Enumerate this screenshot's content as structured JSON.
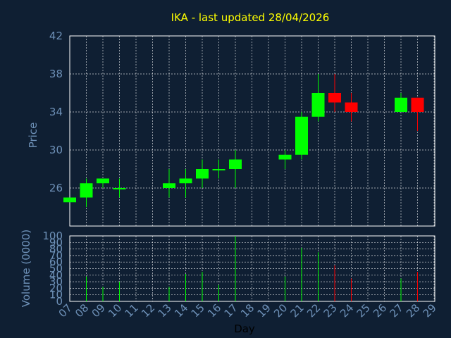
{
  "chart_data": {
    "title": "IKA - last updated 28/04/2026",
    "colors": {
      "background": "#0f1f33",
      "up": "#00ff00",
      "down": "#ff0000",
      "grid": "#ffffff",
      "tick_text": "#6e91b8",
      "title": "#ffff00",
      "axis_title": "#000000"
    },
    "grid": true,
    "x_ticks": [
      "07",
      "08",
      "09",
      "10",
      "11",
      "12",
      "13",
      "14",
      "15",
      "16",
      "17",
      "18",
      "19",
      "20",
      "21",
      "22",
      "23",
      "24",
      "25",
      "26",
      "27",
      "28",
      "29"
    ],
    "charts": [
      {
        "type": "candlestick",
        "ylabel": "Price",
        "ylim": [
          22,
          42
        ],
        "y_ticks": [
          "26",
          "30",
          "34",
          "38",
          "42"
        ],
        "candles": [
          {
            "day": "07",
            "open": 24.5,
            "close": 25.0,
            "low": 24.5,
            "high": 25.0
          },
          {
            "day": "08",
            "open": 25.0,
            "close": 26.5,
            "low": 24.0,
            "high": 27.0
          },
          {
            "day": "09",
            "open": 26.5,
            "close": 27.0,
            "low": 26.0,
            "high": 27.0
          },
          {
            "day": "10",
            "open": 26.0,
            "close": 26.0,
            "low": 25.0,
            "high": 27.0
          },
          {
            "day": "13",
            "open": 26.0,
            "close": 26.5,
            "low": 25.0,
            "high": 28.0
          },
          {
            "day": "14",
            "open": 26.5,
            "close": 27.0,
            "low": 25.0,
            "high": 28.0
          },
          {
            "day": "15",
            "open": 27.0,
            "close": 28.0,
            "low": 26.0,
            "high": 29.0
          },
          {
            "day": "16",
            "open": 28.0,
            "close": 28.0,
            "low": 27.0,
            "high": 29.0
          },
          {
            "day": "17",
            "open": 28.0,
            "close": 29.0,
            "low": 26.0,
            "high": 30.0
          },
          {
            "day": "20",
            "open": 29.0,
            "close": 29.5,
            "low": 28.0,
            "high": 30.0
          },
          {
            "day": "21",
            "open": 29.5,
            "close": 33.5,
            "low": 29.0,
            "high": 34.0
          },
          {
            "day": "22",
            "open": 33.5,
            "close": 36.0,
            "low": 33.0,
            "high": 38.0
          },
          {
            "day": "23",
            "open": 36.0,
            "close": 35.0,
            "low": 34.0,
            "high": 38.0
          },
          {
            "day": "24",
            "open": 35.0,
            "close": 34.0,
            "low": 33.0,
            "high": 36.0
          },
          {
            "day": "27",
            "open": 34.0,
            "close": 35.5,
            "low": 34.0,
            "high": 36.0
          },
          {
            "day": "28",
            "open": 35.5,
            "close": 34.0,
            "low": 32.0,
            "high": 35.5
          }
        ]
      },
      {
        "type": "bar",
        "ylabel": "Volume (0000)",
        "ylim": [
          0,
          100
        ],
        "y_ticks": [
          "0",
          "10",
          "20",
          "30",
          "40",
          "50",
          "60",
          "70",
          "80",
          "90",
          "100"
        ],
        "volumes": [
          {
            "day": "08",
            "value": 38,
            "direction": "up"
          },
          {
            "day": "09",
            "value": 22,
            "direction": "up"
          },
          {
            "day": "10",
            "value": 30,
            "direction": "up"
          },
          {
            "day": "13",
            "value": 22,
            "direction": "up"
          },
          {
            "day": "14",
            "value": 42,
            "direction": "up"
          },
          {
            "day": "15",
            "value": 45,
            "direction": "up"
          },
          {
            "day": "16",
            "value": 25,
            "direction": "up"
          },
          {
            "day": "17",
            "value": 100,
            "direction": "up"
          },
          {
            "day": "20",
            "value": 38,
            "direction": "up"
          },
          {
            "day": "21",
            "value": 82,
            "direction": "up"
          },
          {
            "day": "22",
            "value": 75,
            "direction": "up"
          },
          {
            "day": "23",
            "value": 55,
            "direction": "down"
          },
          {
            "day": "24",
            "value": 35,
            "direction": "down"
          },
          {
            "day": "27",
            "value": 35,
            "direction": "up"
          },
          {
            "day": "28",
            "value": 45,
            "direction": "down"
          }
        ]
      }
    ],
    "xlabel": "Day"
  }
}
